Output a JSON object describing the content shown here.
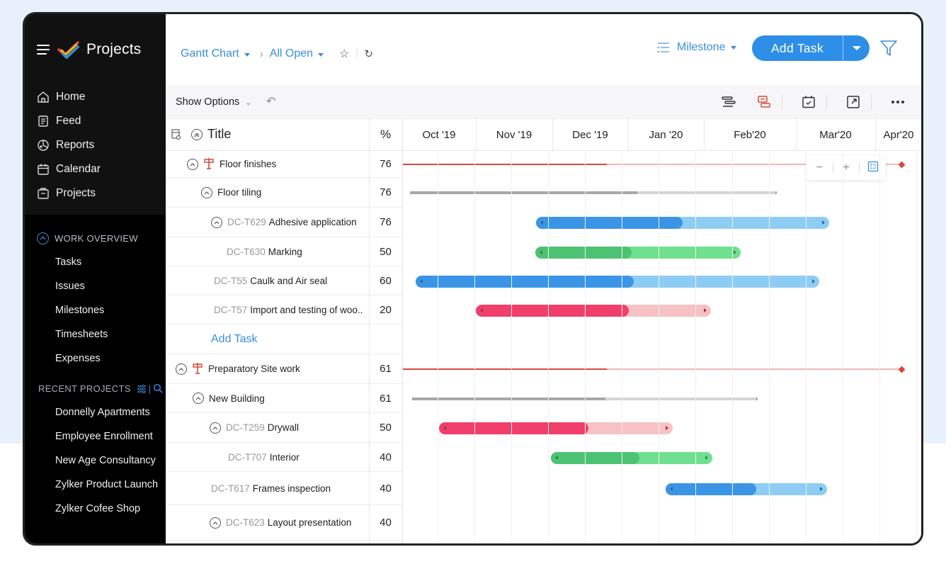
{
  "brand": {
    "title": "Projects"
  },
  "nav": [
    {
      "label": "Home",
      "icon": "home-icon"
    },
    {
      "label": "Feed",
      "icon": "feed-icon"
    },
    {
      "label": "Reports",
      "icon": "reports-icon"
    },
    {
      "label": "Calendar",
      "icon": "calendar-icon"
    },
    {
      "label": "Projects",
      "icon": "projects-icon"
    }
  ],
  "work_overview": {
    "heading": "WORK OVERVIEW",
    "items": [
      "Tasks",
      "Issues",
      "Milestones",
      "Timesheets",
      "Expenses"
    ]
  },
  "recent_projects": {
    "heading": "RECENT PROJECTS",
    "items": [
      "Donnelly Apartments",
      "Employee Enrollment",
      "New Age Consultancy",
      "Zylker Product Launch",
      "Zylker Cofee Shop"
    ]
  },
  "breadcrumb": {
    "view": "Gantt Chart",
    "filter": "All Open"
  },
  "milestone_label": "Milestone",
  "add_task_label": "Add Task",
  "toolbar": {
    "show_options": "Show Options"
  },
  "grid": {
    "title_header": "Title",
    "pct_header": "%",
    "months": [
      "Oct '19",
      "Nov '19",
      "Dec '19",
      "Jan '20",
      "Feb'20",
      "Mar'20",
      "Apr'20"
    ],
    "rows": [
      {
        "id": "",
        "title": "Floor finishes",
        "pct": "76",
        "kind": "milestone"
      },
      {
        "id": "",
        "title": "Floor tiling",
        "pct": "76",
        "kind": "group"
      },
      {
        "id": "DC-T629",
        "title": "Adhesive application",
        "pct": "76",
        "kind": "task",
        "color": "blue"
      },
      {
        "id": "DC-T630",
        "title": "Marking",
        "pct": "50",
        "kind": "task",
        "color": "green"
      },
      {
        "id": "DC-T55",
        "title": "Caulk and Air seal",
        "pct": "60",
        "kind": "task",
        "color": "blue"
      },
      {
        "id": "DC-T57",
        "title": "Import and testing of woo..",
        "pct": "20",
        "kind": "task",
        "color": "red"
      },
      {
        "id": "",
        "title": "Add Task",
        "pct": "",
        "kind": "add"
      },
      {
        "id": "",
        "title": "Preparatory Site work",
        "pct": "61",
        "kind": "milestone"
      },
      {
        "id": "",
        "title": "New Building",
        "pct": "61",
        "kind": "group"
      },
      {
        "id": "DC-T259",
        "title": "Drywall",
        "pct": "50",
        "kind": "task",
        "color": "red"
      },
      {
        "id": "DC-T707",
        "title": "Interior",
        "pct": "40",
        "kind": "task",
        "color": "green"
      },
      {
        "id": "DC-T617",
        "title": "Frames inspection",
        "pct": "40",
        "kind": "task",
        "color": "blue"
      },
      {
        "id": "DC-T623",
        "title": "Layout presentation",
        "pct": "40",
        "kind": "task"
      }
    ]
  },
  "colors": {
    "blue": "#3a95e6",
    "blue_light": "#8ecdf3",
    "green": "#4cc373",
    "green_light": "#6ee08e",
    "red": "#ef3f6a",
    "red_light": "#f6c2c4",
    "milestone": "#d9493e",
    "milestone_light": "#f3b6b2",
    "group": "#a8a8a8",
    "group_light": "#d4d4d4",
    "accent": "#2d8ee8"
  }
}
